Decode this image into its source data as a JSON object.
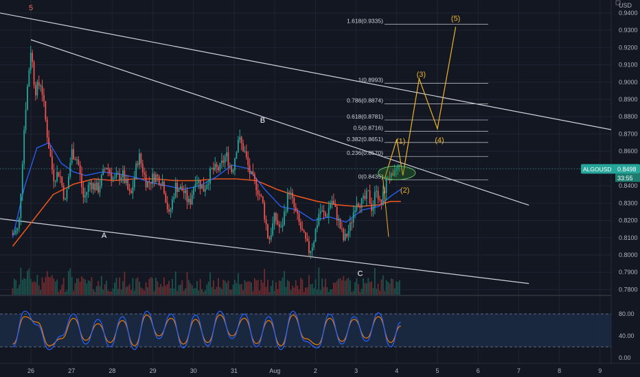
{
  "chart_data": {
    "type": "candlestick",
    "symbol": "ALGOUSD",
    "currency_label": "USD",
    "last_price": "0.8498",
    "countdown": "33:55",
    "y_ticks": [
      "0.9400",
      "0.9300",
      "0.9200",
      "0.9100",
      "0.9000",
      "0.8900",
      "0.8800",
      "0.8700",
      "0.8600",
      "0.8500",
      "0.8400",
      "0.8300",
      "0.8200",
      "0.8100",
      "0.8000",
      "0.7900",
      "0.7800"
    ],
    "x_ticks": [
      "26",
      "27",
      "28",
      "29",
      "30",
      "31",
      "Aug",
      "2",
      "3",
      "4",
      "5",
      "6",
      "7",
      "8",
      "9"
    ],
    "osc_ticks": [
      "80.00",
      "40.00",
      "0.00"
    ],
    "osc_band": [
      20,
      80
    ],
    "ylim": [
      0.777,
      0.9475
    ],
    "fib_levels": [
      {
        "label": "1.618(0.9335)",
        "value": 0.9335
      },
      {
        "label": "1(0.8993)",
        "value": 0.8993
      },
      {
        "label": "0.786(0.8874)",
        "value": 0.8874
      },
      {
        "label": "0.618(0.8781)",
        "value": 0.8781
      },
      {
        "label": "0.5(0.8716)",
        "value": 0.8716
      },
      {
        "label": "0.382(0.8651)",
        "value": 0.8651
      },
      {
        "label": "0.236(0.8570)",
        "value": 0.857
      },
      {
        "label": "0(0.8435)",
        "value": 0.8435
      }
    ],
    "wave_labels": [
      "5",
      "A",
      "B",
      "C",
      "(1)",
      "(2)",
      "(3)",
      "(4)",
      "(5)"
    ],
    "price_path": [
      [
        0,
        0.812
      ],
      [
        0.15,
        0.815
      ],
      [
        0.3,
        0.88
      ],
      [
        0.45,
        0.92
      ],
      [
        0.55,
        0.895
      ],
      [
        0.7,
        0.9
      ],
      [
        0.85,
        0.87
      ],
      [
        1.0,
        0.845
      ],
      [
        1.15,
        0.848
      ],
      [
        1.3,
        0.83
      ],
      [
        1.45,
        0.86
      ],
      [
        1.6,
        0.855
      ],
      [
        1.75,
        0.832
      ],
      [
        1.9,
        0.842
      ],
      [
        2.1,
        0.838
      ],
      [
        2.3,
        0.852
      ],
      [
        2.5,
        0.843
      ],
      [
        2.7,
        0.847
      ],
      [
        2.9,
        0.833
      ],
      [
        3.1,
        0.858
      ],
      [
        3.3,
        0.841
      ],
      [
        3.5,
        0.846
      ],
      [
        3.7,
        0.842
      ],
      [
        3.85,
        0.822
      ],
      [
        4.0,
        0.84
      ],
      [
        4.2,
        0.837
      ],
      [
        4.35,
        0.829
      ],
      [
        4.5,
        0.845
      ],
      [
        4.7,
        0.838
      ],
      [
        4.9,
        0.849
      ],
      [
        5.1,
        0.85
      ],
      [
        5.25,
        0.858
      ],
      [
        5.4,
        0.848
      ],
      [
        5.55,
        0.868
      ],
      [
        5.7,
        0.86
      ],
      [
        5.85,
        0.846
      ],
      [
        6.0,
        0.84
      ],
      [
        6.15,
        0.83
      ],
      [
        6.3,
        0.808
      ],
      [
        6.45,
        0.822
      ],
      [
        6.6,
        0.814
      ],
      [
        6.8,
        0.838
      ],
      [
        6.95,
        0.825
      ],
      [
        7.15,
        0.811
      ],
      [
        7.3,
        0.802
      ],
      [
        7.4,
        0.808
      ],
      [
        7.55,
        0.826
      ],
      [
        7.7,
        0.822
      ],
      [
        7.85,
        0.832
      ],
      [
        8.0,
        0.821
      ],
      [
        8.15,
        0.808
      ],
      [
        8.3,
        0.816
      ],
      [
        8.45,
        0.832
      ],
      [
        8.6,
        0.83
      ],
      [
        8.75,
        0.835
      ],
      [
        8.85,
        0.826
      ],
      [
        8.95,
        0.84
      ],
      [
        9.05,
        0.827
      ],
      [
        9.15,
        0.838
      ],
      [
        9.25,
        0.848
      ],
      [
        9.35,
        0.842
      ],
      [
        9.45,
        0.851
      ],
      [
        9.55,
        0.85
      ]
    ],
    "ma_slow": [
      [
        0,
        0.805
      ],
      [
        0.5,
        0.82
      ],
      [
        1.0,
        0.835
      ],
      [
        1.5,
        0.841
      ],
      [
        2.0,
        0.844
      ],
      [
        2.5,
        0.843
      ],
      [
        3.0,
        0.844
      ],
      [
        3.5,
        0.844
      ],
      [
        4.0,
        0.843
      ],
      [
        4.5,
        0.843
      ],
      [
        5.0,
        0.844
      ],
      [
        5.5,
        0.844
      ],
      [
        6.0,
        0.843
      ],
      [
        6.5,
        0.838
      ],
      [
        7.0,
        0.834
      ],
      [
        7.5,
        0.831
      ],
      [
        8.0,
        0.829
      ],
      [
        8.5,
        0.828
      ],
      [
        9.0,
        0.829
      ],
      [
        9.3,
        0.831
      ],
      [
        9.55,
        0.831
      ]
    ],
    "ma_fast": [
      [
        0,
        0.81
      ],
      [
        0.3,
        0.84
      ],
      [
        0.6,
        0.862
      ],
      [
        0.9,
        0.865
      ],
      [
        1.2,
        0.853
      ],
      [
        1.5,
        0.848
      ],
      [
        1.8,
        0.846
      ],
      [
        2.2,
        0.848
      ],
      [
        2.6,
        0.847
      ],
      [
        3.0,
        0.845
      ],
      [
        3.4,
        0.842
      ],
      [
        3.8,
        0.84
      ],
      [
        4.2,
        0.838
      ],
      [
        4.6,
        0.84
      ],
      [
        5.0,
        0.845
      ],
      [
        5.4,
        0.852
      ],
      [
        5.8,
        0.85
      ],
      [
        6.2,
        0.838
      ],
      [
        6.6,
        0.828
      ],
      [
        7.0,
        0.826
      ],
      [
        7.4,
        0.82
      ],
      [
        7.8,
        0.822
      ],
      [
        8.2,
        0.819
      ],
      [
        8.6,
        0.826
      ],
      [
        9.0,
        0.828
      ],
      [
        9.3,
        0.834
      ],
      [
        9.55,
        0.838
      ]
    ],
    "projection": [
      [
        9.15,
        0.844
      ],
      [
        9.45,
        0.867
      ],
      [
        9.6,
        0.846
      ],
      [
        10.0,
        0.902
      ],
      [
        10.45,
        0.873
      ],
      [
        10.9,
        0.932
      ]
    ],
    "osc_k": [
      [
        0,
        20
      ],
      [
        0.3,
        85
      ],
      [
        0.6,
        60
      ],
      [
        0.9,
        15
      ],
      [
        1.2,
        40
      ],
      [
        1.5,
        80
      ],
      [
        1.8,
        25
      ],
      [
        2.1,
        70
      ],
      [
        2.4,
        20
      ],
      [
        2.7,
        75
      ],
      [
        3.0,
        15
      ],
      [
        3.3,
        85
      ],
      [
        3.6,
        35
      ],
      [
        3.9,
        80
      ],
      [
        4.2,
        18
      ],
      [
        4.5,
        78
      ],
      [
        4.8,
        22
      ],
      [
        5.1,
        85
      ],
      [
        5.4,
        35
      ],
      [
        5.7,
        80
      ],
      [
        6.0,
        20
      ],
      [
        6.3,
        75
      ],
      [
        6.6,
        15
      ],
      [
        6.9,
        85
      ],
      [
        7.2,
        30
      ],
      [
        7.5,
        18
      ],
      [
        7.8,
        80
      ],
      [
        8.1,
        25
      ],
      [
        8.4,
        75
      ],
      [
        8.7,
        30
      ],
      [
        9.0,
        82
      ],
      [
        9.3,
        20
      ],
      [
        9.55,
        65
      ]
    ],
    "osc_d": [
      [
        0,
        25
      ],
      [
        0.3,
        75
      ],
      [
        0.6,
        65
      ],
      [
        0.9,
        22
      ],
      [
        1.2,
        35
      ],
      [
        1.5,
        72
      ],
      [
        1.8,
        32
      ],
      [
        2.1,
        62
      ],
      [
        2.4,
        28
      ],
      [
        2.7,
        68
      ],
      [
        3.0,
        22
      ],
      [
        3.3,
        78
      ],
      [
        3.6,
        40
      ],
      [
        3.9,
        72
      ],
      [
        4.2,
        25
      ],
      [
        4.5,
        70
      ],
      [
        4.8,
        28
      ],
      [
        5.1,
        78
      ],
      [
        5.4,
        40
      ],
      [
        5.7,
        72
      ],
      [
        6.0,
        26
      ],
      [
        6.3,
        68
      ],
      [
        6.6,
        22
      ],
      [
        6.9,
        78
      ],
      [
        7.2,
        35
      ],
      [
        7.5,
        24
      ],
      [
        7.8,
        72
      ],
      [
        8.1,
        30
      ],
      [
        8.4,
        70
      ],
      [
        8.7,
        36
      ],
      [
        9.0,
        75
      ],
      [
        9.3,
        28
      ],
      [
        9.55,
        58
      ]
    ]
  }
}
